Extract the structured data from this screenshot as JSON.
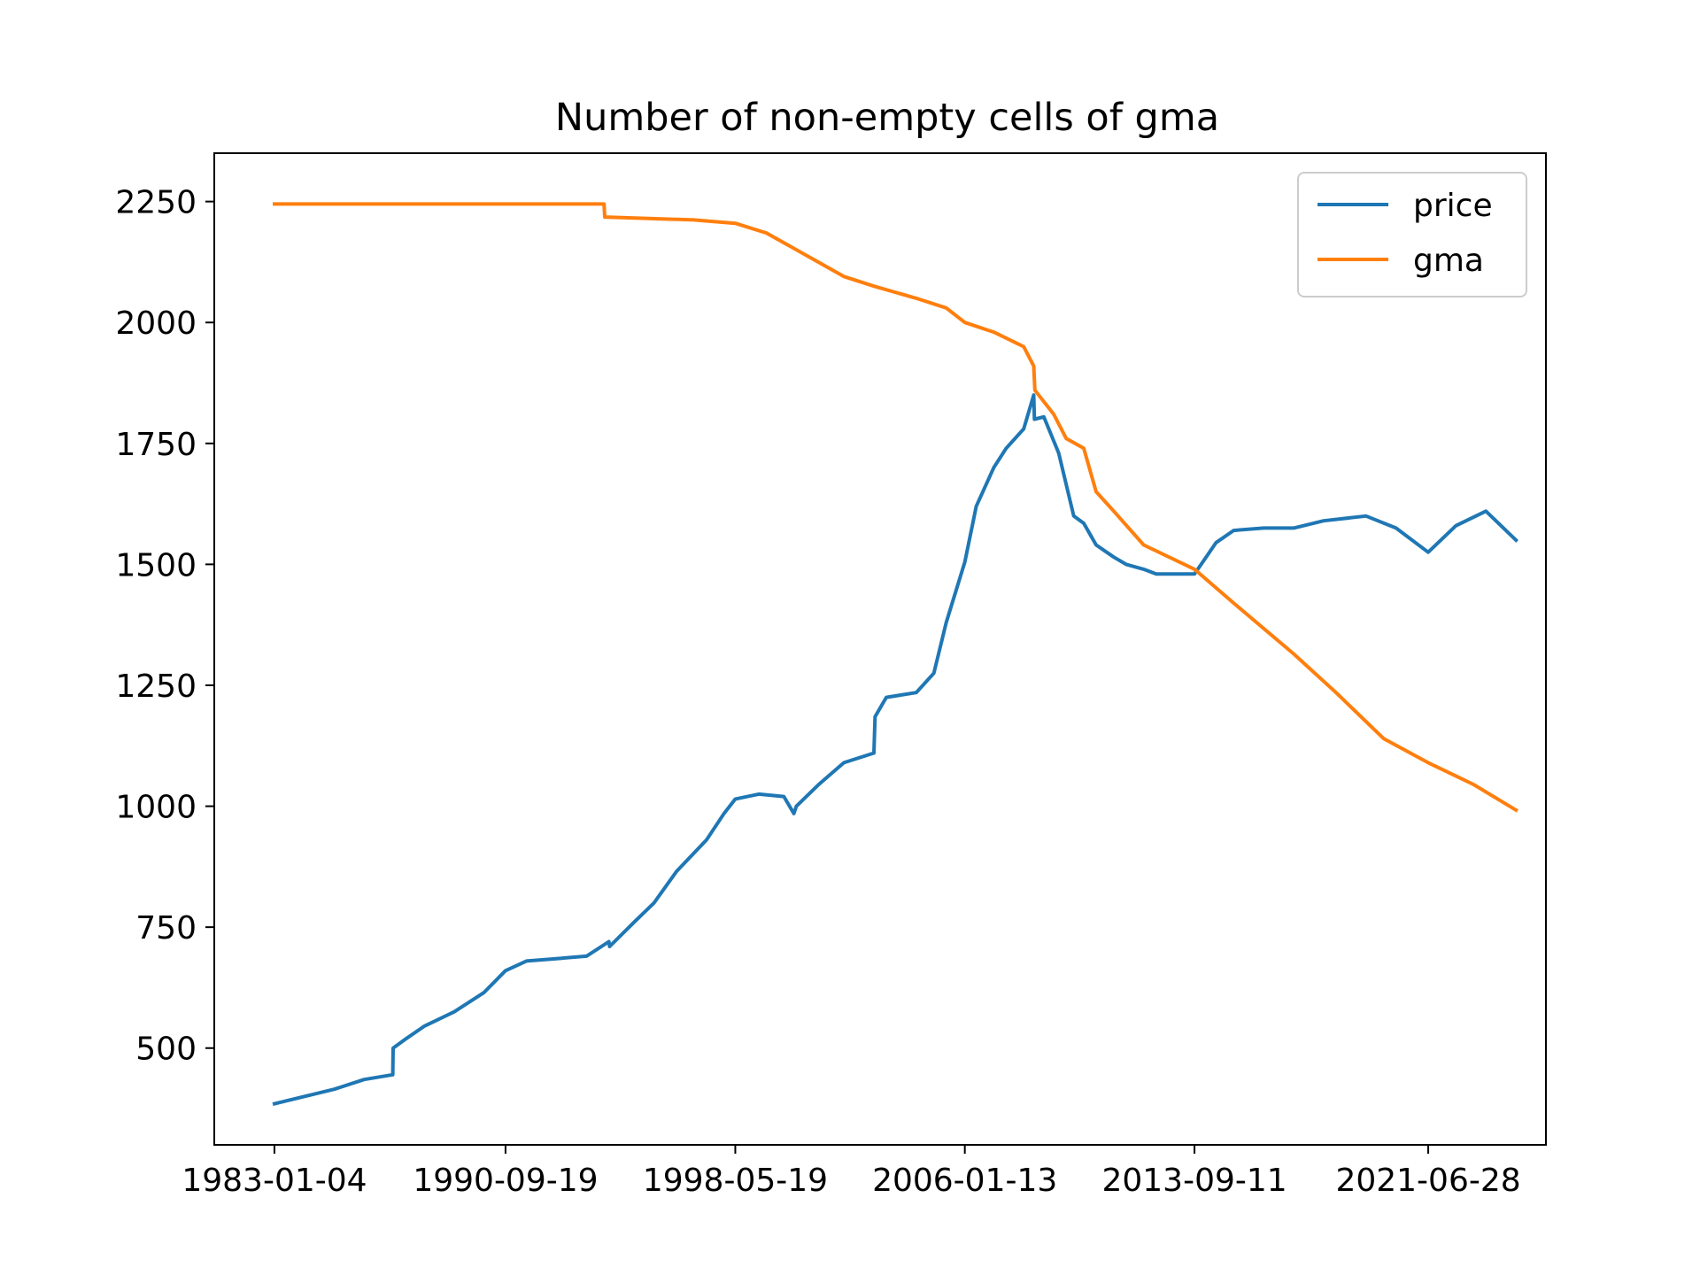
{
  "chart_data": {
    "type": "line",
    "title": "Number of non-empty cells of gma",
    "xlabel": "",
    "ylabel": "",
    "x_tick_labels": [
      "1983-01-04",
      "1990-09-19",
      "1998-05-19",
      "2006-01-13",
      "2013-09-11",
      "2021-06-28"
    ],
    "y_ticks": [
      500,
      750,
      1000,
      1250,
      1500,
      1750,
      2000,
      2250
    ],
    "xlim": [
      "1981-01-01",
      "2025-06-01"
    ],
    "ylim": [
      300,
      2350
    ],
    "grid": false,
    "legend_position": "top-right",
    "series": [
      {
        "name": "price",
        "color": "#1f77b4",
        "x": [
          "1983-01-04",
          "1984-01-01",
          "1985-01-01",
          "1986-01-01",
          "1986-12-15",
          "1986-12-20",
          "1987-06-01",
          "1988-01-01",
          "1989-01-01",
          "1990-01-01",
          "1990-09-19",
          "1991-06-01",
          "1992-06-01",
          "1993-06-01",
          "1994-03-01",
          "1994-03-10",
          "1995-01-01",
          "1995-09-01",
          "1996-06-01",
          "1997-06-01",
          "1998-01-01",
          "1998-05-19",
          "1999-03-01",
          "2000-01-01",
          "2000-05-01",
          "2000-06-01",
          "2001-03-01",
          "2002-01-01",
          "2003-01-01",
          "2003-01-15",
          "2003-06-01",
          "2004-06-01",
          "2005-01-01",
          "2005-06-01",
          "2006-01-13",
          "2006-06-01",
          "2007-01-01",
          "2007-06-01",
          "2008-01-01",
          "2008-05-01",
          "2008-05-10",
          "2008-09-01",
          "2009-03-01",
          "2009-09-01",
          "2010-01-01",
          "2010-06-01",
          "2011-01-01",
          "2011-06-01",
          "2012-01-01",
          "2012-06-01",
          "2013-01-01",
          "2013-09-11",
          "2014-06-01",
          "2015-01-01",
          "2016-01-01",
          "2017-01-01",
          "2018-01-01",
          "2019-06-01",
          "2020-06-01",
          "2021-06-28",
          "2022-06-01",
          "2023-06-01",
          "2024-06-01"
        ],
        "values": [
          385,
          400,
          415,
          435,
          445,
          500,
          520,
          545,
          575,
          615,
          660,
          680,
          685,
          690,
          720,
          710,
          760,
          800,
          865,
          930,
          985,
          1015,
          1025,
          1020,
          985,
          1000,
          1045,
          1090,
          1110,
          1185,
          1225,
          1235,
          1275,
          1380,
          1505,
          1620,
          1700,
          1740,
          1780,
          1850,
          1800,
          1805,
          1730,
          1600,
          1585,
          1540,
          1515,
          1500,
          1490,
          1480,
          1480,
          1480,
          1545,
          1570,
          1575,
          1575,
          1590,
          1600,
          1575,
          1525,
          1580,
          1610,
          1550
        ]
      },
      {
        "name": "gma",
        "color": "#ff7f0e",
        "x": [
          "1983-01-04",
          "1990-09-19",
          "1994-01-01",
          "1994-01-10",
          "1997-01-01",
          "1998-05-19",
          "1999-06-01",
          "2001-01-01",
          "2002-01-01",
          "2003-01-01",
          "2004-06-01",
          "2005-06-01",
          "2006-01-13",
          "2007-01-01",
          "2008-01-01",
          "2008-05-01",
          "2008-05-15",
          "2009-01-01",
          "2009-06-01",
          "2010-01-01",
          "2010-06-01",
          "2011-01-01",
          "2012-01-01",
          "2013-09-11",
          "2015-01-01",
          "2017-01-01",
          "2018-06-01",
          "2020-01-01",
          "2021-06-28",
          "2023-01-01",
          "2024-06-01"
        ],
        "values": [
          2245,
          2245,
          2245,
          2218,
          2212,
          2205,
          2185,
          2130,
          2095,
          2075,
          2050,
          2030,
          2000,
          1980,
          1950,
          1910,
          1860,
          1810,
          1760,
          1740,
          1650,
          1610,
          1540,
          1490,
          1420,
          1315,
          1235,
          1140,
          1090,
          1045,
          992
        ]
      }
    ]
  }
}
